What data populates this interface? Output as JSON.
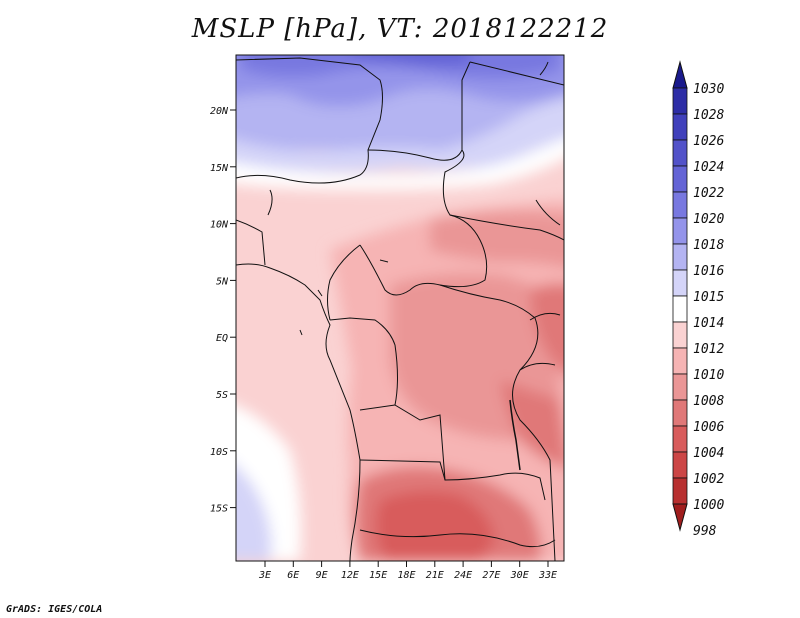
{
  "title": "MSLP [hPa], VT: 2018122212",
  "credit": "GrADS: IGES/COLA",
  "map": {
    "lat_ticks": [
      "20N",
      "15N",
      "10N",
      "5N",
      "EQ",
      "5S",
      "10S",
      "15S"
    ],
    "lon_ticks": [
      "3E",
      "6E",
      "9E",
      "12E",
      "15E",
      "18E",
      "21E",
      "24E",
      "27E",
      "30E",
      "33E"
    ]
  },
  "colorbar": {
    "levels": [
      "1030",
      "1028",
      "1026",
      "1024",
      "1022",
      "1020",
      "1018",
      "1016",
      "1015",
      "1014",
      "1012",
      "1010",
      "1008",
      "1006",
      "1004",
      "1002",
      "1000",
      "998"
    ],
    "colors": [
      "#1a1a8c",
      "#2d2da6",
      "#4040bb",
      "#5252c9",
      "#6464d6",
      "#7878e0",
      "#9494ea",
      "#b4b4f2",
      "#d4d4f8",
      "#ffffff",
      "#fad2d2",
      "#f6b4b4",
      "#ea9696",
      "#e07878",
      "#d85c5c",
      "#cc4646",
      "#b83030",
      "#a01e1e"
    ]
  }
}
